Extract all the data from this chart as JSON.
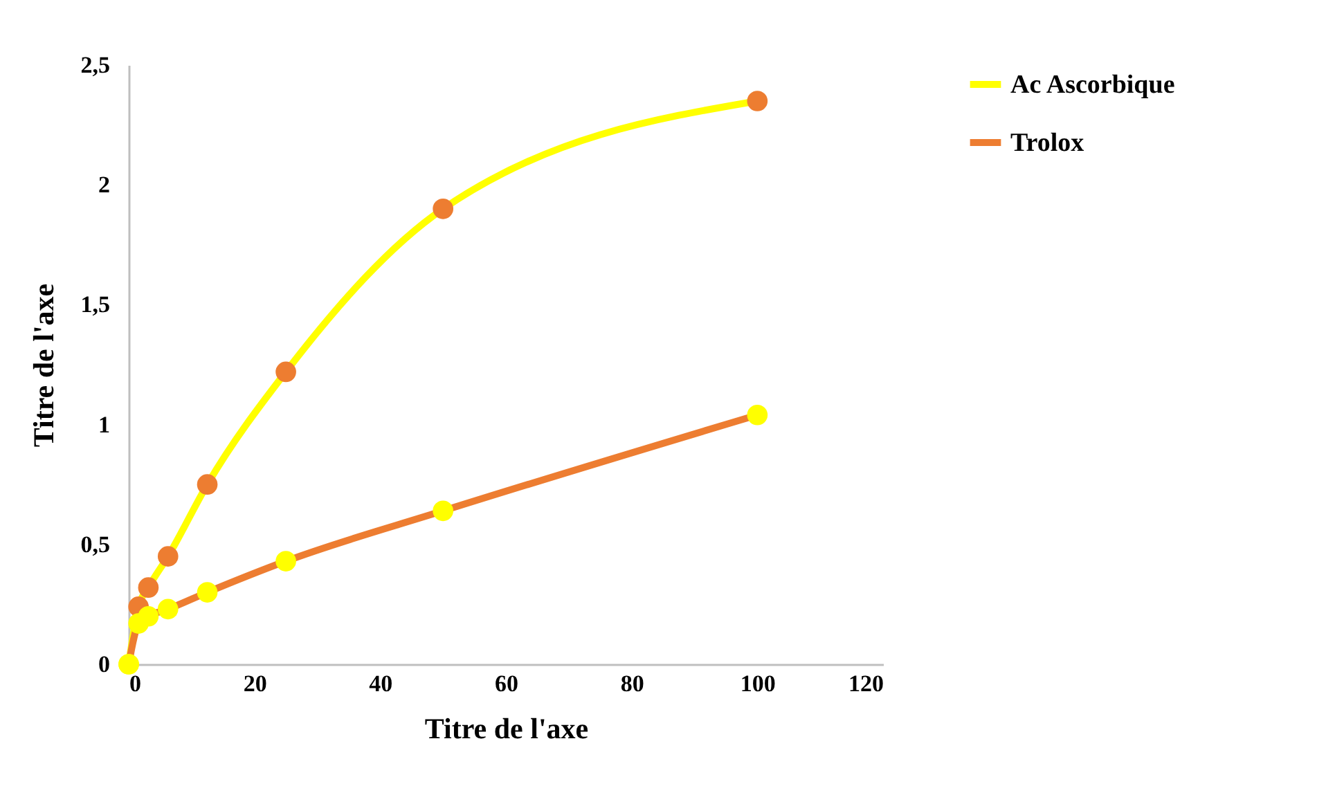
{
  "chart_data": {
    "type": "line",
    "xlabel": "Titre de l'axe",
    "ylabel": "Titre de l'axe",
    "xlim": [
      0,
      120
    ],
    "xticks": [
      0,
      20,
      40,
      60,
      80,
      100,
      120
    ],
    "ylim": [
      0,
      2.5
    ],
    "yticks": [
      0,
      {
        "value": 0.5,
        "label": "0,5"
      },
      1,
      {
        "value": 1.5,
        "label": "1,5"
      },
      2,
      {
        "value": 2.5,
        "label": "2,5"
      }
    ],
    "grid": false,
    "legend": "top right",
    "marker": "circle",
    "series": [
      {
        "name": "Ac Ascorbique",
        "color": "#ffff00",
        "colors": [
          "#ffff00",
          "#ed7d31",
          "#ed7d31",
          "#ed7d31",
          "#ed7d31",
          "#ed7d31",
          "#ed7d31",
          "#ed7d31"
        ],
        "x": [
          0,
          1.56,
          3.125,
          6.25,
          12.5,
          25,
          50,
          100
        ],
        "values": [
          0,
          0.24,
          0.32,
          0.45,
          0.75,
          1.22,
          1.9,
          2.35
        ]
      },
      {
        "name": "Trolox",
        "color": "#ed7d31",
        "colors": [
          "#ffff00",
          "#ffff00",
          "#ffff00",
          "#ffff00",
          "#ffff00",
          "#ffff00",
          "#ffff00",
          "#ffff00"
        ],
        "x": [
          0,
          1.56,
          3.125,
          6.25,
          12.5,
          25,
          50,
          100
        ],
        "values": [
          0,
          0.17,
          0.2,
          0.23,
          0.3,
          0.43,
          0.64,
          1.04
        ]
      }
    ]
  }
}
